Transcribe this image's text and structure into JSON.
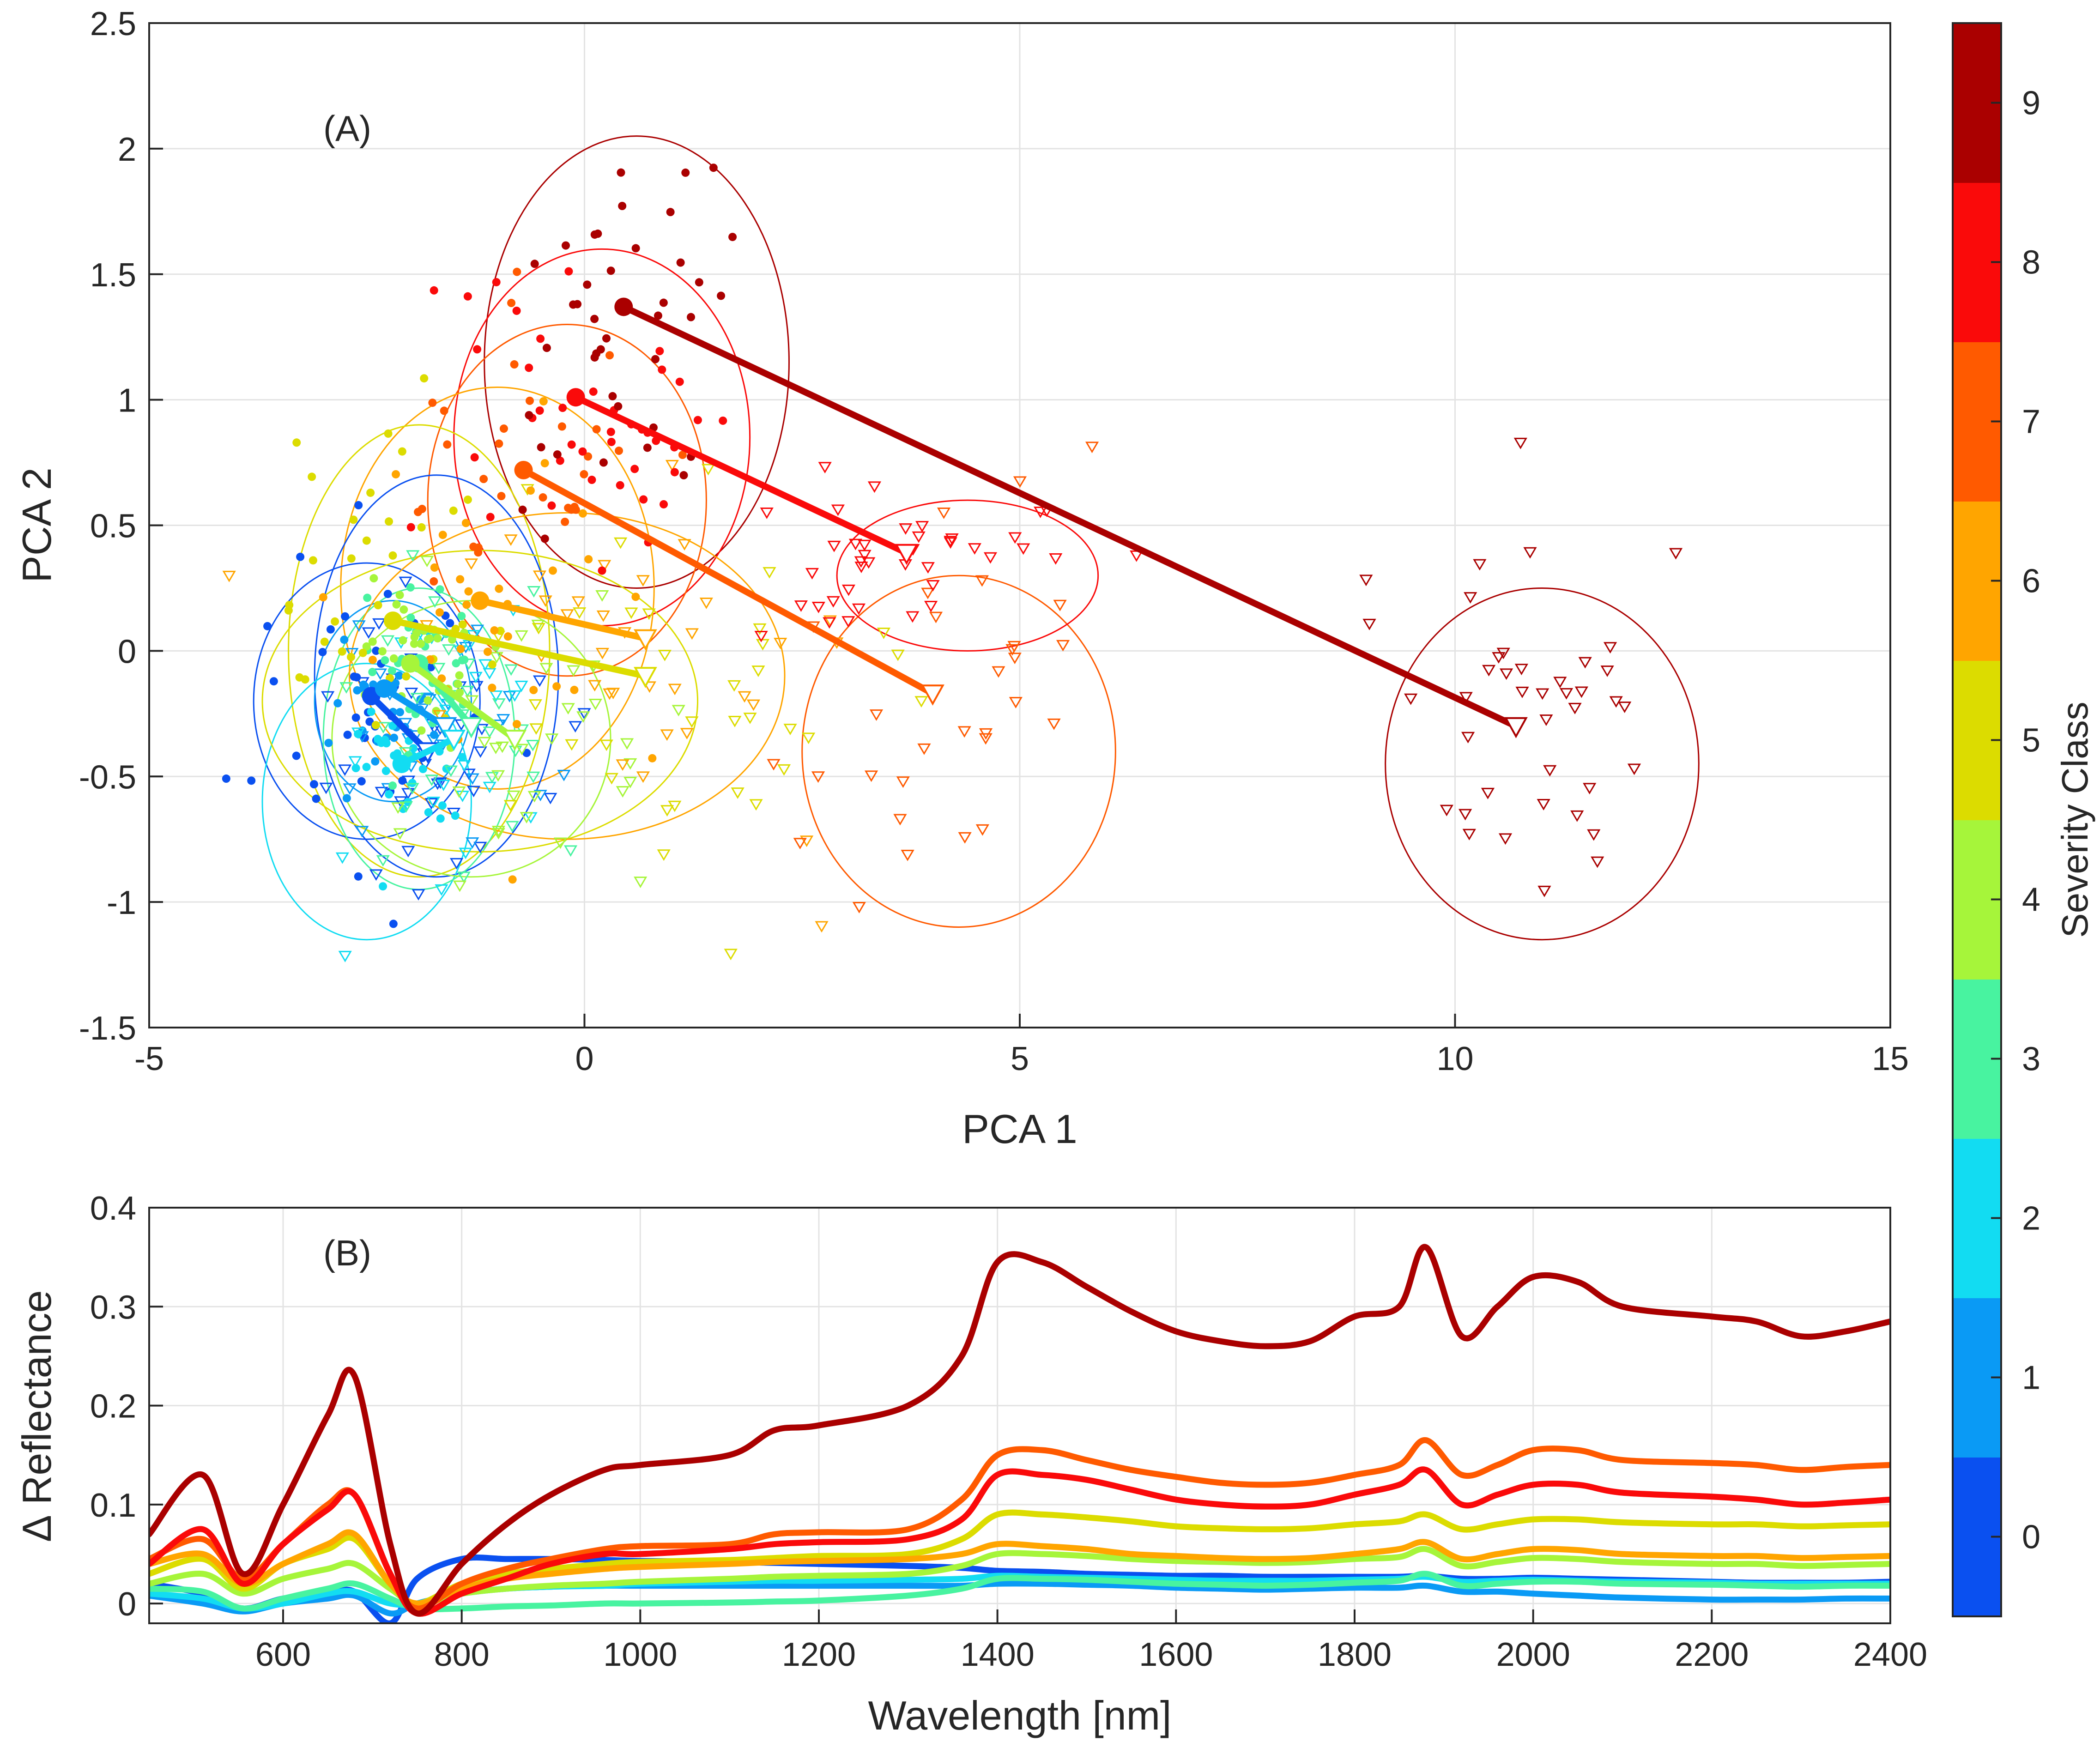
{
  "chart_data": [
    {
      "panel_label": "(A)",
      "type": "scatter",
      "xlabel": "PCA 1",
      "ylabel": "PCA 2",
      "xlim": [
        -5,
        15
      ],
      "ylim": [
        -1.5,
        2.5
      ],
      "xticks": [
        -5,
        0,
        5,
        10,
        15
      ],
      "yticks": [
        -1.5,
        -1,
        -0.5,
        0,
        0.5,
        1,
        1.5,
        2,
        2.5
      ],
      "xtick_labels": [
        "-5",
        "0",
        "5",
        "10",
        "15"
      ],
      "ytick_labels": [
        "-1.5",
        "-1",
        "-0.5",
        "0",
        "0.5",
        "1",
        "1.5",
        "2",
        "2.5"
      ],
      "grid": true,
      "classes": [
        {
          "class": 0,
          "color": "#0a50f0",
          "start": [
            -2.45,
            -0.18
          ],
          "end": [
            -1.8,
            -0.4
          ],
          "ellipse": {
            "cx": -2.5,
            "cy": -0.2,
            "rx": 1.3,
            "ry": 0.55
          }
        },
        {
          "class": 1,
          "color": "#0a9af5",
          "start": [
            -2.3,
            -0.15
          ],
          "end": [
            -1.6,
            -0.3
          ],
          "ellipse": {
            "cx": -2.2,
            "cy": -0.2,
            "rx": 0.9,
            "ry": 0.4
          }
        },
        {
          "class": 2,
          "color": "#12dcf2",
          "start": [
            -2.1,
            -0.45
          ],
          "end": [
            -1.5,
            -0.35
          ],
          "ellipse": {
            "cx": -2.5,
            "cy": -0.6,
            "rx": 1.2,
            "ry": 0.55
          }
        },
        {
          "class": 3,
          "color": "#48f3a0",
          "start": [
            -1.9,
            -0.05
          ],
          "end": [
            -1.3,
            -0.3
          ],
          "ellipse": {
            "cx": -1.9,
            "cy": -0.35,
            "rx": 1.1,
            "ry": 0.6
          }
        },
        {
          "class": 4,
          "color": "#a6f53a",
          "start": [
            -2.0,
            -0.05
          ],
          "end": [
            -0.8,
            -0.35
          ],
          "ellipse": {
            "cx": -1.3,
            "cy": -0.35,
            "rx": 1.6,
            "ry": 0.55
          }
        },
        {
          "class": 5,
          "color": "#dcdc00",
          "start": [
            -2.2,
            0.12
          ],
          "end": [
            0.7,
            -0.1
          ],
          "ellipse": {
            "cx": -1.2,
            "cy": -0.2,
            "rx": 2.5,
            "ry": 0.6
          }
        },
        {
          "class": 6,
          "color": "#ffa500",
          "start": [
            -1.2,
            0.2
          ],
          "end": [
            0.7,
            0.05
          ],
          "ellipse": {
            "cx": -0.2,
            "cy": -0.1,
            "rx": 2.5,
            "ry": 0.65
          }
        },
        {
          "class": 7,
          "color": "#ff5a00",
          "start": [
            -0.7,
            0.72
          ],
          "end": [
            4.0,
            -0.17
          ],
          "ellipse": {
            "cx": 4.3,
            "cy": -0.4,
            "rx": 1.8,
            "ry": 0.7
          }
        },
        {
          "class": 8,
          "color": "#fa0a0a",
          "start": [
            -0.1,
            1.01
          ],
          "end": [
            3.7,
            0.39
          ],
          "ellipse": {
            "cx": 4.4,
            "cy": 0.3,
            "rx": 1.5,
            "ry": 0.3
          }
        },
        {
          "class": 9,
          "color": "#aa0000",
          "start": [
            0.45,
            1.37
          ],
          "end": [
            10.7,
            -0.3
          ],
          "ellipse": {
            "cx": 11.0,
            "cy": -0.45,
            "rx": 1.8,
            "ry": 0.7
          }
        }
      ],
      "start_ellipses": [
        {
          "class": 9,
          "cx": 0.6,
          "cy": 1.15,
          "rx": 1.75,
          "ry": 0.9
        },
        {
          "class": 8,
          "cx": 0.2,
          "cy": 0.85,
          "rx": 1.7,
          "ry": 0.75
        },
        {
          "class": 7,
          "cx": -0.2,
          "cy": 0.6,
          "rx": 1.6,
          "ry": 0.7
        },
        {
          "class": 6,
          "cx": -1.0,
          "cy": 0.25,
          "rx": 1.8,
          "ry": 0.8
        },
        {
          "class": 5,
          "cx": -1.9,
          "cy": 0.0,
          "rx": 1.5,
          "ry": 0.9
        },
        {
          "class": 0,
          "cx": -1.7,
          "cy": -0.1,
          "rx": 1.4,
          "ry": 0.8
        }
      ],
      "note": "Individual sample markers: filled dots (start) and open downward triangles (end), colored by severity class; approximate distribution reconstructed."
    },
    {
      "panel_label": "(B)",
      "type": "line",
      "xlabel": "Wavelength [nm]",
      "ylabel": "∆ Reflectance",
      "xlim": [
        450,
        2400
      ],
      "ylim": [
        -0.02,
        0.4
      ],
      "xticks": [
        600,
        800,
        1000,
        1200,
        1400,
        1600,
        1800,
        2000,
        2200,
        2400
      ],
      "yticks": [
        0,
        0.1,
        0.2,
        0.3,
        0.4
      ],
      "xtick_labels": [
        "600",
        "800",
        "1000",
        "1200",
        "1400",
        "1600",
        "1800",
        "2000",
        "2200",
        "2400"
      ],
      "ytick_labels": [
        "0",
        "0.1",
        "0.2",
        "0.3",
        "0.4"
      ],
      "grid": true,
      "x": [
        450,
        510,
        555,
        600,
        650,
        680,
        720,
        750,
        800,
        850,
        900,
        960,
        1000,
        1100,
        1150,
        1200,
        1300,
        1360,
        1400,
        1450,
        1500,
        1550,
        1600,
        1650,
        1700,
        1750,
        1800,
        1850,
        1880,
        1920,
        1960,
        2000,
        2050,
        2100,
        2200,
        2250,
        2300,
        2350,
        2400
      ],
      "series": [
        {
          "name": "9",
          "color": "#aa0000",
          "values": [
            0.07,
            0.13,
            0.03,
            0.1,
            0.19,
            0.23,
            0.06,
            -0.01,
            0.04,
            0.08,
            0.11,
            0.135,
            0.14,
            0.15,
            0.175,
            0.18,
            0.2,
            0.25,
            0.345,
            0.345,
            0.32,
            0.295,
            0.275,
            0.265,
            0.26,
            0.265,
            0.29,
            0.3,
            0.36,
            0.27,
            0.3,
            0.33,
            0.325,
            0.3,
            0.29,
            0.285,
            0.27,
            0.275,
            0.285
          ]
        },
        {
          "name": "8",
          "color": "#fa0a0a",
          "values": [
            0.04,
            0.075,
            0.02,
            0.06,
            0.095,
            0.11,
            0.03,
            -0.01,
            0.01,
            0.025,
            0.04,
            0.05,
            0.05,
            0.055,
            0.06,
            0.062,
            0.065,
            0.085,
            0.13,
            0.13,
            0.125,
            0.115,
            0.105,
            0.1,
            0.098,
            0.1,
            0.11,
            0.12,
            0.135,
            0.1,
            0.11,
            0.12,
            0.12,
            0.112,
            0.108,
            0.105,
            0.1,
            0.102,
            0.105
          ]
        },
        {
          "name": "7",
          "color": "#ff5a00",
          "values": [
            0.045,
            0.065,
            0.025,
            0.06,
            0.1,
            0.11,
            0.03,
            -0.005,
            0.02,
            0.035,
            0.045,
            0.055,
            0.058,
            0.06,
            0.07,
            0.072,
            0.075,
            0.105,
            0.15,
            0.155,
            0.145,
            0.135,
            0.128,
            0.122,
            0.12,
            0.122,
            0.13,
            0.14,
            0.165,
            0.13,
            0.14,
            0.155,
            0.155,
            0.145,
            0.142,
            0.14,
            0.135,
            0.138,
            0.14
          ]
        },
        {
          "name": "6",
          "color": "#ffa500",
          "values": [
            0.04,
            0.05,
            0.02,
            0.04,
            0.06,
            0.07,
            0.02,
            0.0,
            0.015,
            0.025,
            0.03,
            0.035,
            0.037,
            0.04,
            0.042,
            0.043,
            0.045,
            0.05,
            0.06,
            0.058,
            0.055,
            0.05,
            0.048,
            0.046,
            0.045,
            0.046,
            0.05,
            0.055,
            0.062,
            0.045,
            0.05,
            0.055,
            0.054,
            0.05,
            0.048,
            0.048,
            0.046,
            0.047,
            0.048
          ]
        },
        {
          "name": "5",
          "color": "#dcdc00",
          "values": [
            0.03,
            0.045,
            0.015,
            0.04,
            0.055,
            0.065,
            0.02,
            0.0,
            0.02,
            0.03,
            0.035,
            0.04,
            0.042,
            0.044,
            0.046,
            0.048,
            0.05,
            0.065,
            0.09,
            0.09,
            0.087,
            0.083,
            0.078,
            0.076,
            0.075,
            0.076,
            0.08,
            0.083,
            0.09,
            0.075,
            0.08,
            0.085,
            0.085,
            0.082,
            0.08,
            0.08,
            0.078,
            0.079,
            0.08
          ]
        },
        {
          "name": "4",
          "color": "#a6f53a",
          "values": [
            0.02,
            0.03,
            0.01,
            0.025,
            0.035,
            0.04,
            0.015,
            0.0,
            0.01,
            0.015,
            0.018,
            0.02,
            0.022,
            0.025,
            0.027,
            0.028,
            0.03,
            0.038,
            0.05,
            0.05,
            0.048,
            0.045,
            0.043,
            0.042,
            0.041,
            0.042,
            0.045,
            0.047,
            0.055,
            0.038,
            0.042,
            0.046,
            0.045,
            0.042,
            0.04,
            0.04,
            0.038,
            0.039,
            0.04
          ]
        },
        {
          "name": "3",
          "color": "#48f3a0",
          "values": [
            0.015,
            0.012,
            -0.005,
            0.005,
            0.015,
            0.02,
            0.005,
            -0.005,
            -0.005,
            -0.003,
            -0.002,
            0.0,
            0.0,
            0.001,
            0.002,
            0.003,
            0.008,
            0.015,
            0.025,
            0.025,
            0.024,
            0.022,
            0.02,
            0.019,
            0.018,
            0.019,
            0.021,
            0.023,
            0.03,
            0.018,
            0.02,
            0.022,
            0.022,
            0.02,
            0.019,
            0.018,
            0.017,
            0.018,
            0.018
          ]
        },
        {
          "name": "2",
          "color": "#12dcf2",
          "values": [
            0.01,
            0.005,
            -0.005,
            0.0,
            0.01,
            0.012,
            0.0,
            0.0,
            0.01,
            0.015,
            0.017,
            0.018,
            0.02,
            0.022,
            0.023,
            0.023,
            0.024,
            0.025,
            0.028,
            0.027,
            0.026,
            0.025,
            0.024,
            0.023,
            0.023,
            0.023,
            0.024,
            0.025,
            0.027,
            0.022,
            0.023,
            0.024,
            0.023,
            0.022,
            0.021,
            0.02,
            0.02,
            0.02,
            0.02
          ]
        },
        {
          "name": "1",
          "color": "#0a9af5",
          "values": [
            0.008,
            0.0,
            -0.008,
            0.0,
            0.005,
            0.008,
            -0.01,
            0.0,
            0.01,
            0.015,
            0.017,
            0.018,
            0.018,
            0.018,
            0.018,
            0.018,
            0.018,
            0.018,
            0.02,
            0.02,
            0.019,
            0.018,
            0.016,
            0.015,
            0.014,
            0.015,
            0.016,
            0.016,
            0.018,
            0.012,
            0.012,
            0.01,
            0.008,
            0.006,
            0.004,
            0.004,
            0.004,
            0.005,
            0.005
          ]
        },
        {
          "name": "0",
          "color": "#0a50f0",
          "values": [
            0.02,
            0.01,
            -0.005,
            0.005,
            0.01,
            0.012,
            -0.02,
            0.025,
            0.045,
            0.045,
            0.045,
            0.044,
            0.043,
            0.042,
            0.041,
            0.04,
            0.038,
            0.036,
            0.033,
            0.032,
            0.03,
            0.029,
            0.028,
            0.028,
            0.027,
            0.027,
            0.027,
            0.027,
            0.028,
            0.025,
            0.025,
            0.026,
            0.025,
            0.024,
            0.022,
            0.021,
            0.021,
            0.021,
            0.022
          ]
        }
      ]
    },
    {
      "type": "colorbar",
      "label": "Severity Class",
      "ticks": [
        0,
        1,
        2,
        3,
        4,
        5,
        6,
        7,
        8,
        9
      ],
      "tick_labels": [
        "0",
        "1",
        "2",
        "3",
        "4",
        "5",
        "6",
        "7",
        "8",
        "9"
      ],
      "range": [
        -0.5,
        9.5
      ],
      "colors": [
        "#0a50f0",
        "#0a9af5",
        "#12dcf2",
        "#48f3a0",
        "#a6f53a",
        "#dcdc00",
        "#ffa500",
        "#ff5a00",
        "#fa0a0a",
        "#aa0000"
      ]
    }
  ]
}
